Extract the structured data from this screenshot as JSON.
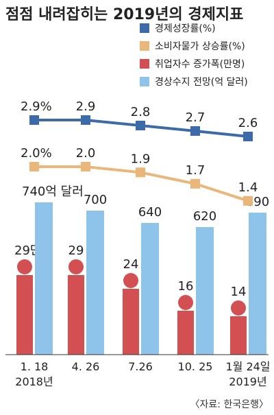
{
  "chart_data": {
    "type": "bar",
    "title": "점점 내려잡히는 2019년의 경제지표",
    "categories": [
      {
        "date": "1. 18",
        "year": "2018년"
      },
      {
        "date": "4. 26",
        "year": ""
      },
      {
        "date": "7.26",
        "year": ""
      },
      {
        "date": "10. 25",
        "year": ""
      },
      {
        "date": "1월 24일",
        "year": "2019년"
      }
    ],
    "series": [
      {
        "name": "경제성장률(%)",
        "type": "line",
        "color": "#3d6aa8",
        "values": [
          2.9,
          2.9,
          2.8,
          2.7,
          2.6
        ],
        "labels": [
          "2.9%",
          "2.9",
          "2.8",
          "2.7",
          "2.6"
        ]
      },
      {
        "name": "소비자물가 상승률(%)",
        "type": "line",
        "color": "#eab679",
        "values": [
          2.0,
          2.0,
          1.9,
          1.7,
          1.4
        ],
        "labels": [
          "2.0%",
          "2.0",
          "1.9",
          "1.7",
          "1.4"
        ]
      },
      {
        "name": "취업자수 증가폭(만명)",
        "type": "bar",
        "color": "#d24f52",
        "values": [
          29,
          29,
          24,
          16,
          14
        ],
        "labels": [
          "29만명",
          "29",
          "24",
          "16",
          "14"
        ]
      },
      {
        "name": "경상수지 전망(억 달러)",
        "type": "bar",
        "color": "#8ec3ea",
        "values": [
          740,
          700,
          640,
          620,
          690
        ],
        "labels": [
          "740억 달러",
          "700",
          "640",
          "620",
          "690"
        ]
      }
    ],
    "legend_position": "top-right",
    "source": "〈자료: 한국은행〉"
  }
}
